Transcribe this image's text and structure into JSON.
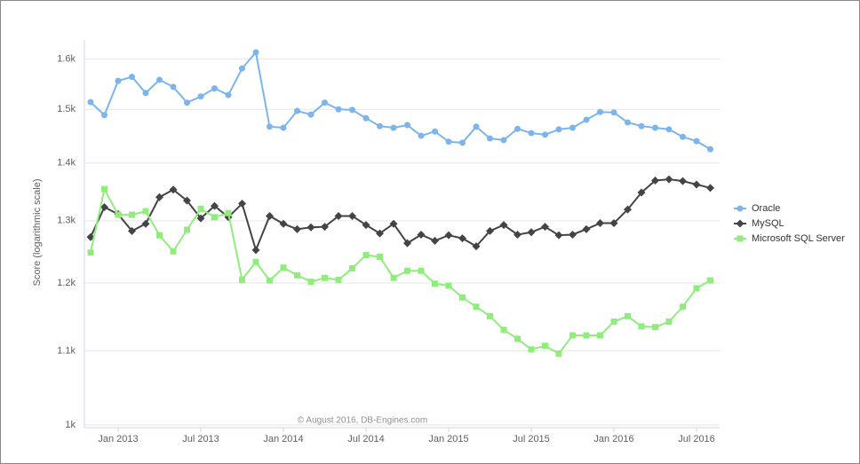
{
  "chart_data": {
    "type": "line",
    "yscale": "log",
    "grid": true,
    "legend": "right",
    "ylabel": "Score (logarithmic scale)",
    "credits": "© August 2016, DB-Engines.com",
    "categories": [
      null,
      null,
      "Jan 2013",
      null,
      null,
      null,
      null,
      null,
      "Jul 2013",
      null,
      null,
      null,
      null,
      null,
      "Jan 2014",
      null,
      null,
      null,
      null,
      null,
      "Jul 2014",
      null,
      null,
      null,
      null,
      null,
      "Jan 2015",
      null,
      null,
      null,
      null,
      null,
      "Jul 2015",
      null,
      null,
      null,
      null,
      null,
      "Jan 2016",
      null,
      null,
      null,
      null,
      null,
      "Jul 2016",
      null
    ],
    "ylim": [
      1000,
      1640
    ],
    "yticks": [
      {
        "value": 1000,
        "label": "1k"
      },
      {
        "value": 1100,
        "label": "1.1k"
      },
      {
        "value": 1200,
        "label": "1.2k"
      },
      {
        "value": 1300,
        "label": "1.3k"
      },
      {
        "value": 1400,
        "label": "1.4k"
      },
      {
        "value": 1500,
        "label": "1.5k"
      },
      {
        "value": 1600,
        "label": "1.6k"
      }
    ],
    "series": [
      {
        "name": "Oracle",
        "color": "#7cb5ec",
        "marker": "circle",
        "values": [
          1514,
          1489,
          1556,
          1564,
          1532,
          1558,
          1544,
          1513,
          1525,
          1541,
          1528,
          1581,
          1614,
          1467,
          1465,
          1497,
          1490,
          1513,
          1500,
          1499,
          1483,
          1468,
          1465,
          1470,
          1450,
          1458,
          1439,
          1437,
          1467,
          1445,
          1442,
          1463,
          1455,
          1452,
          1462,
          1465,
          1480,
          1495,
          1494,
          1475,
          1468,
          1465,
          1462,
          1448,
          1440,
          1425
        ]
      },
      {
        "name": "MySQL",
        "color": "#434348",
        "marker": "diamond",
        "values": [
          1273,
          1323,
          1311,
          1283,
          1295,
          1340,
          1353,
          1334,
          1304,
          1325,
          1306,
          1329,
          1252,
          1308,
          1295,
          1286,
          1289,
          1290,
          1308,
          1308,
          1293,
          1279,
          1295,
          1263,
          1277,
          1267,
          1276,
          1271,
          1258,
          1283,
          1293,
          1277,
          1281,
          1290,
          1276,
          1277,
          1286,
          1296,
          1296,
          1319,
          1348,
          1369,
          1371,
          1368,
          1362,
          1356
        ]
      },
      {
        "name": "Microsoft SQL Server",
        "color": "#90ed7d",
        "marker": "square",
        "values": [
          1248,
          1354,
          1310,
          1310,
          1316,
          1276,
          1250,
          1285,
          1320,
          1306,
          1313,
          1205,
          1233,
          1204,
          1224,
          1212,
          1202,
          1208,
          1205,
          1223,
          1244,
          1241,
          1208,
          1219,
          1219,
          1199,
          1196,
          1178,
          1164,
          1150,
          1130,
          1117,
          1102,
          1107,
          1096,
          1122,
          1122,
          1122,
          1142,
          1150,
          1135,
          1134,
          1142,
          1164,
          1192,
          1204
        ]
      }
    ]
  }
}
